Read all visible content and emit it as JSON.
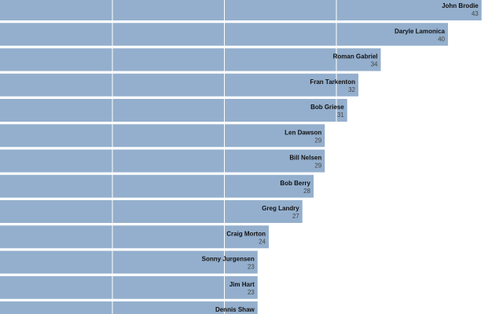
{
  "chart_data": {
    "type": "bar",
    "orientation": "horizontal",
    "categories": [
      "John Brodie",
      "Daryle Lamonica",
      "Roman Gabriel",
      "Fran Tarkenton",
      "Bob Griese",
      "Len Dawson",
      "Bill Nelsen",
      "Bob Berry",
      "Greg Landry",
      "Craig Morton",
      "Sonny Jurgensen",
      "Jim Hart",
      "Dennis Shaw"
    ],
    "values": [
      43,
      40,
      34,
      32,
      31,
      29,
      29,
      28,
      27,
      24,
      23,
      23,
      23
    ],
    "value_labels": [
      "43",
      "40",
      "34",
      "32",
      "31",
      "29",
      "29",
      "28",
      "27",
      "24",
      "23",
      "23",
      ""
    ],
    "xlim": [
      0,
      45
    ],
    "grid_values": [
      10,
      20,
      30
    ],
    "grid": true,
    "title": "",
    "xlabel": "",
    "ylabel": "",
    "colors": {
      "bar": "#94afcd",
      "grid": "#ffffff",
      "name_text": "#111111",
      "value_text": "#444444",
      "background": "#ffffff"
    }
  }
}
